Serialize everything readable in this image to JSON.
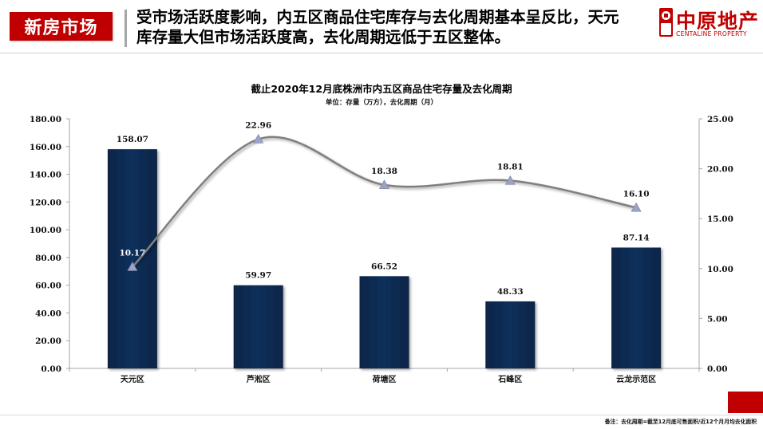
{
  "header": {
    "section_tag": "新房市场",
    "headline_line1": "受市场活跃度影响，内五区商品住宅库存与去化周期基本呈反比，天元",
    "headline_line2": "库存量大但市场活跃度高，去化周期远低于五区整体。",
    "logo": {
      "cn": "中原地产",
      "en": "CENTALINE PROPERTY",
      "icon": "centaline-logo-icon"
    }
  },
  "colors": {
    "brand_red": "#c00000",
    "bar_fill": "#0e2a50",
    "line_stroke": "#7f7f7f",
    "marker_fill": "#9aa3c7",
    "axis": "#a6a6a6"
  },
  "chart_data": {
    "type": "bar",
    "combo": "bar + smoothed line (secondary axis)",
    "title": "截止2020年12月底株洲市内五区商品住宅存量及去化周期",
    "subtitle": "单位：存量（万方），去化周期（月）",
    "categories": [
      "天元区",
      "芦淞区",
      "荷塘区",
      "石峰区",
      "云龙示范区"
    ],
    "series": [
      {
        "name": "存量",
        "type": "bar",
        "axis": "left",
        "values": [
          158.07,
          59.97,
          66.52,
          48.33,
          87.14
        ],
        "labels": [
          "158.07",
          "59.97",
          "66.52",
          "48.33",
          "87.14"
        ]
      },
      {
        "name": "去化周期",
        "type": "line",
        "axis": "right",
        "marker": "triangle",
        "smooth": true,
        "values": [
          10.17,
          22.96,
          18.38,
          18.81,
          16.1
        ],
        "labels": [
          "10.17",
          "22.96",
          "18.38",
          "18.81",
          "16.10"
        ]
      }
    ],
    "y_left": {
      "ylim": [
        0,
        180
      ],
      "ticks": [
        "0.00",
        "20.00",
        "40.00",
        "60.00",
        "80.00",
        "100.00",
        "120.00",
        "140.00",
        "160.00",
        "180.00"
      ]
    },
    "y_right": {
      "ylim": [
        0,
        25
      ],
      "ticks": [
        "0.00",
        "5.00",
        "10.00",
        "15.00",
        "20.00",
        "25.00"
      ]
    },
    "xlabel": "",
    "ylabel": "",
    "grid": false,
    "legend": "none"
  },
  "footer": {
    "note": "备注：去化周期=截至12月底可售面积/近12个月月均去化面积"
  }
}
